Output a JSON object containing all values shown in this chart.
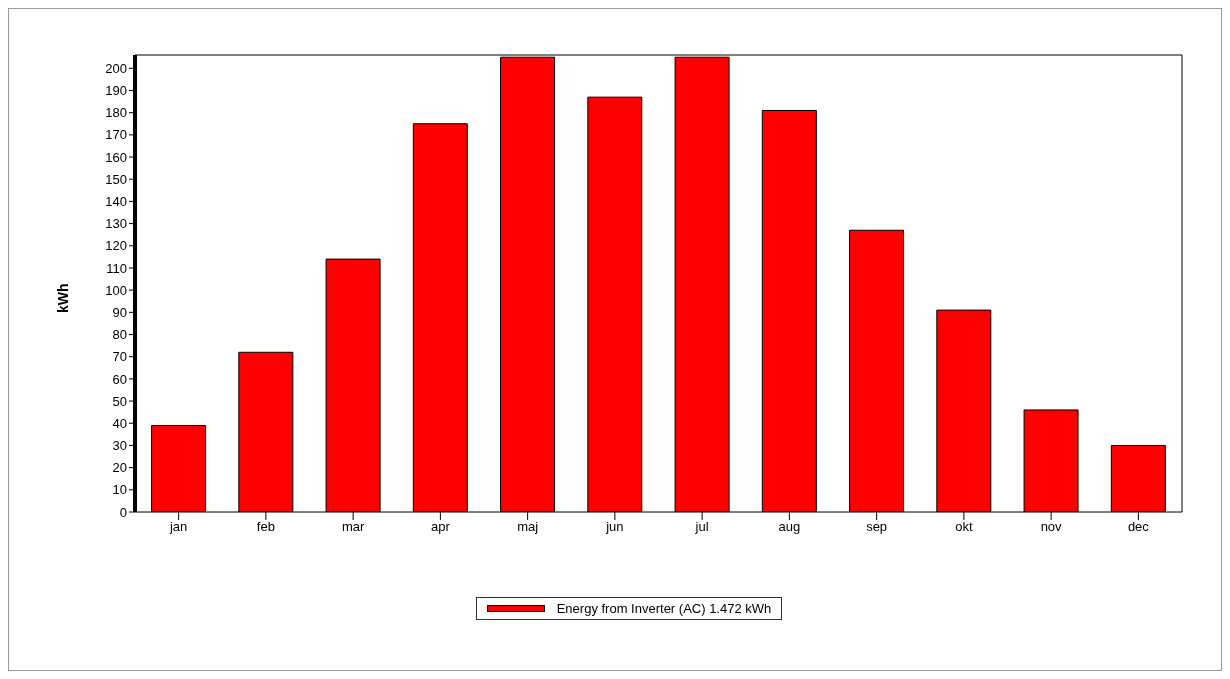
{
  "chart_data": {
    "type": "bar",
    "ylabel": "kWh",
    "categories": [
      "jan",
      "feb",
      "mar",
      "apr",
      "maj",
      "jun",
      "jul",
      "aug",
      "sep",
      "okt",
      "nov",
      "dec"
    ],
    "series": [
      {
        "name": "Energy from Inverter (AC) 1.472 kWh",
        "color": "#ff0000",
        "values": [
          39,
          72,
          114,
          175,
          205,
          187,
          205,
          181,
          127,
          91,
          46,
          30
        ]
      }
    ],
    "ylim": [
      0,
      206
    ],
    "yticks": [
      0,
      10,
      20,
      30,
      40,
      50,
      60,
      70,
      80,
      90,
      100,
      110,
      120,
      130,
      140,
      150,
      160,
      170,
      180,
      190,
      200
    ],
    "grid": false,
    "legend": "bottom"
  }
}
